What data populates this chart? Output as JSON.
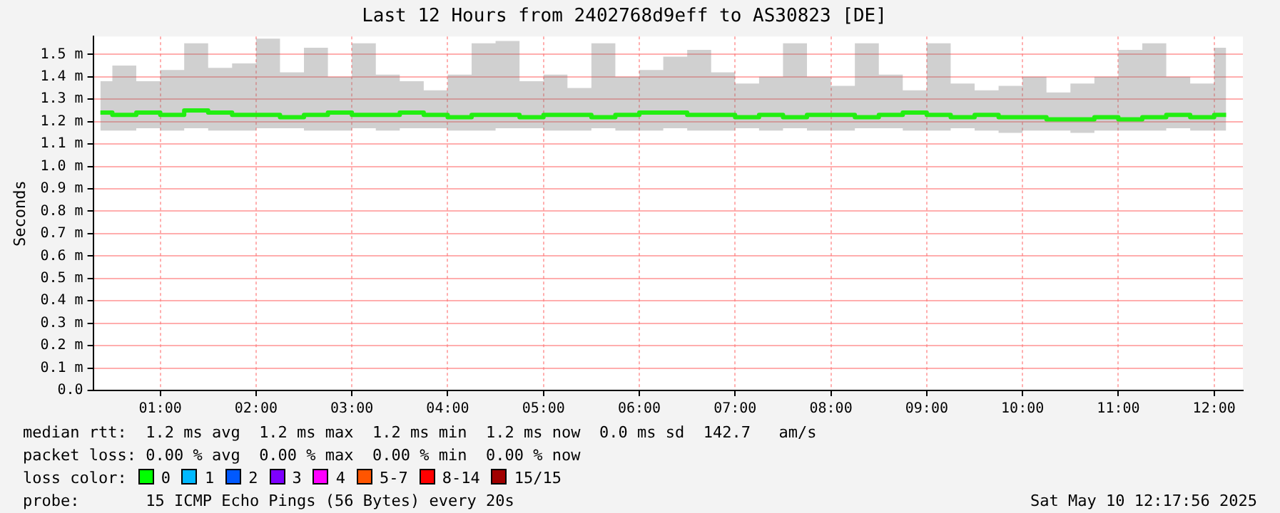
{
  "chart_data": {
    "type": "step",
    "title": "Last 12 Hours from 2402768d9eff to AS30823 [DE]",
    "ylabel": "Seconds",
    "x": [
      0.375,
      0.625,
      0.875,
      1.125,
      1.375,
      1.625,
      1.875,
      2.125,
      2.375,
      2.625,
      2.875,
      3.125,
      3.375,
      3.625,
      3.875,
      4.125,
      4.375,
      4.625,
      4.875,
      5.125,
      5.375,
      5.625,
      5.875,
      6.125,
      6.375,
      6.625,
      6.875,
      7.125,
      7.375,
      7.625,
      7.875,
      8.125,
      8.375,
      8.625,
      8.875,
      9.125,
      9.375,
      9.625,
      9.875,
      10.125,
      10.375,
      10.625,
      10.875,
      11.125,
      11.375,
      11.625,
      11.875,
      12.125
    ],
    "series": [
      {
        "color": "#22ee11",
        "values": [
          1.24,
          1.23,
          1.24,
          1.23,
          1.25,
          1.24,
          1.23,
          1.23,
          1.22,
          1.23,
          1.24,
          1.23,
          1.23,
          1.24,
          1.23,
          1.22,
          1.23,
          1.23,
          1.22,
          1.23,
          1.23,
          1.22,
          1.23,
          1.24,
          1.24,
          1.23,
          1.23,
          1.22,
          1.23,
          1.22,
          1.23,
          1.23,
          1.22,
          1.23,
          1.24,
          1.23,
          1.22,
          1.23,
          1.22,
          1.22,
          1.21,
          1.21,
          1.22,
          1.21,
          1.22,
          1.23,
          1.22,
          1.23
        ],
        "lower": [
          1.16,
          1.16,
          1.17,
          1.16,
          1.17,
          1.16,
          1.16,
          1.17,
          1.17,
          1.16,
          1.16,
          1.17,
          1.16,
          1.17,
          1.17,
          1.16,
          1.16,
          1.17,
          1.17,
          1.16,
          1.16,
          1.17,
          1.16,
          1.16,
          1.17,
          1.16,
          1.16,
          1.17,
          1.16,
          1.17,
          1.16,
          1.16,
          1.17,
          1.17,
          1.16,
          1.16,
          1.17,
          1.16,
          1.15,
          1.16,
          1.16,
          1.15,
          1.16,
          1.16,
          1.16,
          1.17,
          1.16,
          1.16
        ],
        "upper": [
          1.38,
          1.45,
          1.38,
          1.43,
          1.55,
          1.44,
          1.46,
          1.57,
          1.42,
          1.53,
          1.4,
          1.55,
          1.41,
          1.38,
          1.34,
          1.41,
          1.55,
          1.56,
          1.38,
          1.41,
          1.35,
          1.55,
          1.4,
          1.43,
          1.49,
          1.52,
          1.42,
          1.37,
          1.4,
          1.55,
          1.4,
          1.36,
          1.55,
          1.41,
          1.34,
          1.55,
          1.37,
          1.34,
          1.36,
          1.4,
          1.33,
          1.37,
          1.4,
          1.52,
          1.55,
          1.4,
          1.37,
          1.53
        ]
      }
    ],
    "xlim": [
      0.3,
      12.3
    ],
    "xticks": [
      {
        "value": 1,
        "label": "01:00"
      },
      {
        "value": 2,
        "label": "02:00"
      },
      {
        "value": 3,
        "label": "03:00"
      },
      {
        "value": 4,
        "label": "04:00"
      },
      {
        "value": 5,
        "label": "05:00"
      },
      {
        "value": 6,
        "label": "06:00"
      },
      {
        "value": 7,
        "label": "07:00"
      },
      {
        "value": 8,
        "label": "08:00"
      },
      {
        "value": 9,
        "label": "09:00"
      },
      {
        "value": 10,
        "label": "10:00"
      },
      {
        "value": 11,
        "label": "11:00"
      },
      {
        "value": 12,
        "label": "12:00"
      }
    ],
    "ylim": [
      0,
      1.58
    ],
    "yticks": [
      {
        "value": 0,
        "label": "0.0"
      },
      {
        "value": 0.1,
        "label": "0.1 m"
      },
      {
        "value": 0.2,
        "label": "0.2 m"
      },
      {
        "value": 0.3,
        "label": "0.3 m"
      },
      {
        "value": 0.4,
        "label": "0.4 m"
      },
      {
        "value": 0.5,
        "label": "0.5 m"
      },
      {
        "value": 0.6,
        "label": "0.6 m"
      },
      {
        "value": 0.7,
        "label": "0.7 m"
      },
      {
        "value": 0.8,
        "label": "0.8 m"
      },
      {
        "value": 0.9,
        "label": "0.9 m"
      },
      {
        "value": 1.0,
        "label": "1.0 m"
      },
      {
        "value": 1.1,
        "label": "1.1 m"
      },
      {
        "value": 1.2,
        "label": "1.2 m"
      },
      {
        "value": 1.3,
        "label": "1.3 m"
      },
      {
        "value": 1.4,
        "label": "1.4 m"
      },
      {
        "value": 1.5,
        "label": "1.5 m"
      }
    ],
    "grid": true,
    "marker": "none",
    "line_style": "solid",
    "annotations": [
      "median rtt:  1.2 ms avg  1.2 ms max  1.2 ms min  1.2 ms now  0.0 ms sd  142.7   am/s",
      "packet loss: 0.00 % avg  0.00 % max  0.00 % min  0.00 % now",
      "loss color:",
      "0",
      "1",
      "2",
      "3",
      "4",
      "5-7",
      "8-14",
      "15/15",
      "probe:       15 ICMP Echo Pings (56 Bytes) every 20s",
      "Sat May 10 12:17:56 2025"
    ]
  }
}
